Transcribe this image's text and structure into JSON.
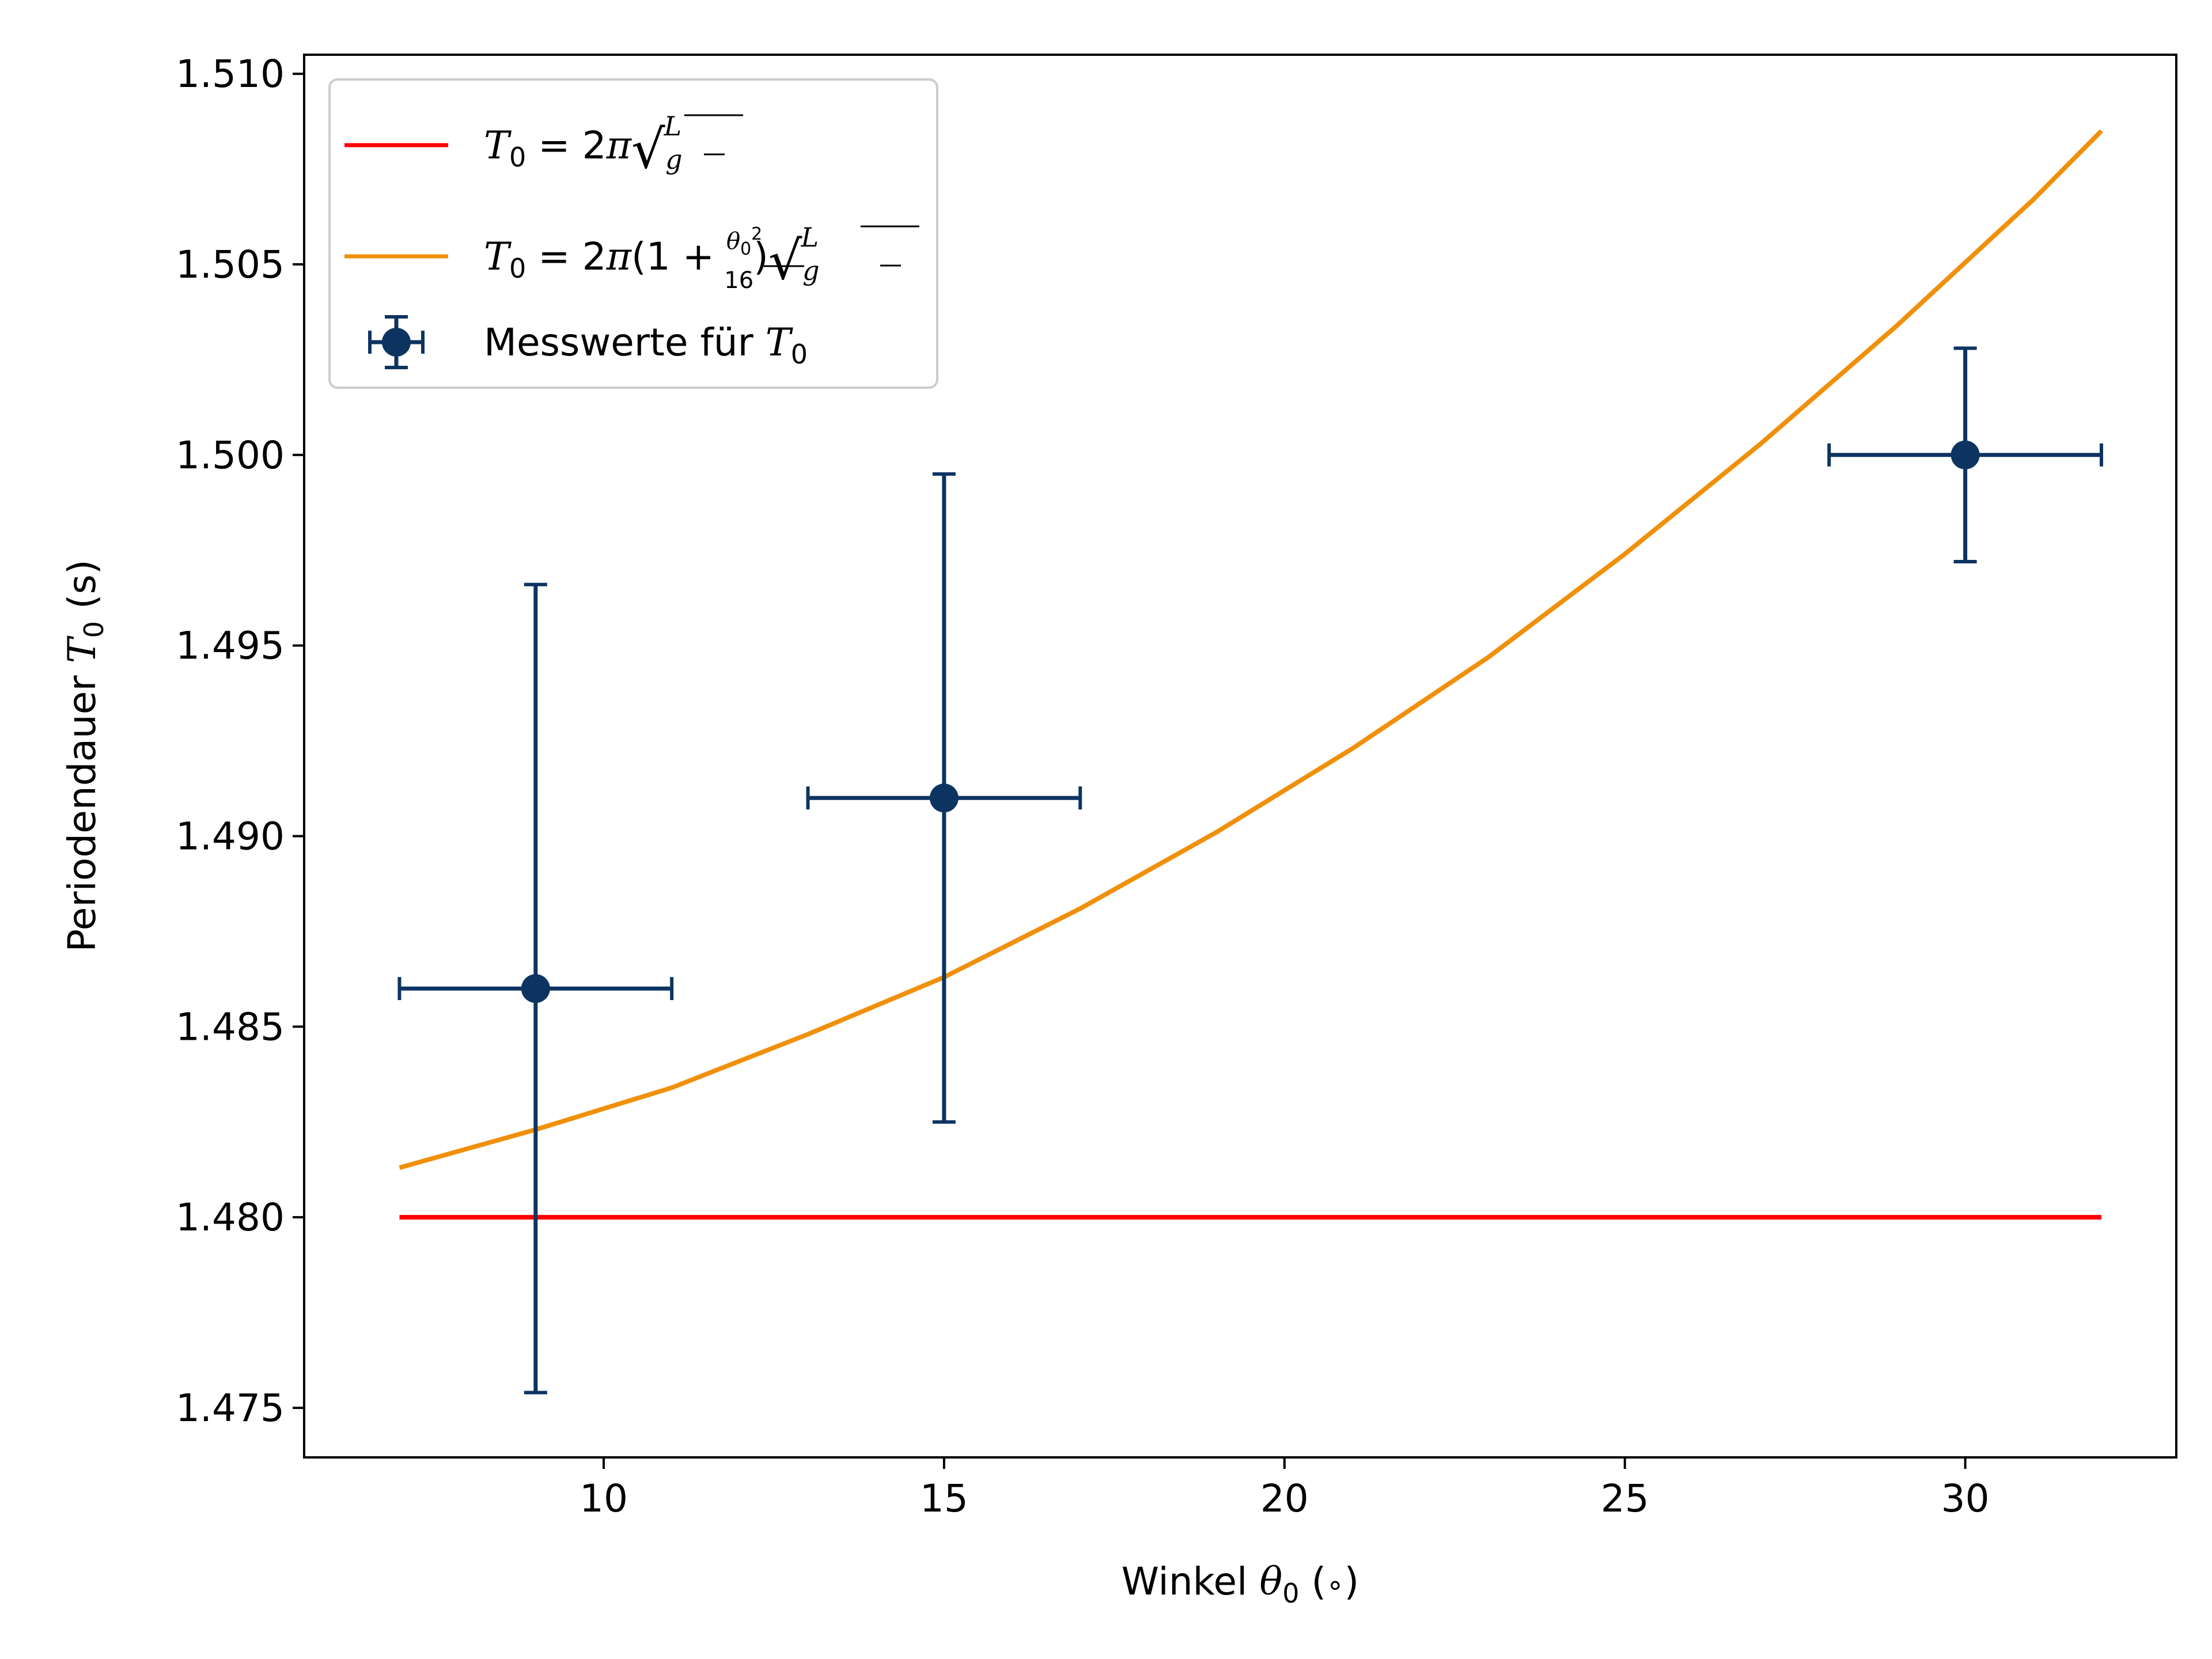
{
  "chart_data": {
    "type": "scatter",
    "xlabel": "Winkel θ₀ (∘)",
    "ylabel": "Periodendauer T₀ (s)",
    "xlim": [
      5.6,
      33.1
    ],
    "ylim": [
      1.4737,
      1.5105
    ],
    "xticks": [
      10,
      15,
      20,
      25,
      30
    ],
    "yticks": [
      1.475,
      1.48,
      1.485,
      1.49,
      1.495,
      1.5,
      1.505,
      1.51
    ],
    "ytick_labels": [
      "1.475",
      "1.480",
      "1.485",
      "1.490",
      "1.495",
      "1.500",
      "1.505",
      "1.510"
    ],
    "xtick_labels": [
      "10",
      "15",
      "20",
      "25",
      "30"
    ],
    "grid": false,
    "legend_position": "top-left",
    "series": [
      {
        "name": "T₀ = 2π√(L/g)",
        "kind": "line",
        "color": "#ff0000",
        "x": [
          7,
          32
        ],
        "y": [
          1.48,
          1.48
        ]
      },
      {
        "name": "T₀ = 2π(1 + θ₀²/16)√(L/g)",
        "kind": "line",
        "color": "#f0900a",
        "x": [
          7,
          9,
          11,
          13,
          15,
          17,
          19,
          21,
          23,
          25,
          27,
          29,
          31,
          32
        ],
        "y": [
          1.4813,
          1.4823,
          1.4834,
          1.4848,
          1.4863,
          1.4881,
          1.4901,
          1.4923,
          1.4947,
          1.4974,
          1.5003,
          1.5034,
          1.5067,
          1.5085
        ]
      },
      {
        "name": "Messwerte für T₀",
        "kind": "errorbar",
        "color": "#0d3461",
        "x": [
          9,
          15,
          30
        ],
        "y": [
          1.486,
          1.491,
          1.5
        ],
        "xerr": [
          2,
          2,
          2
        ],
        "yerr_lower": [
          0.0106,
          0.0085,
          0.0028
        ],
        "yerr_upper": [
          0.0106,
          0.0085,
          0.0028
        ]
      }
    ]
  }
}
